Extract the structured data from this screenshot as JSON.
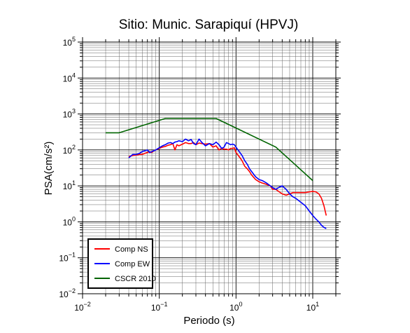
{
  "chart_data": {
    "type": "line",
    "title": "Sitio: Munic. Sarapiquí (HPVJ)",
    "xlabel": "Periodo (s)",
    "ylabel": "PSA(cm/s²)",
    "x_scale": "log",
    "y_scale": "log",
    "xlim": [
      0.01,
      20
    ],
    "ylim": [
      0.01,
      100000
    ],
    "grid": true,
    "legend_position": "bottom-left",
    "x_ticks": [
      {
        "base": "10",
        "exp": "−2",
        "value": 0.01
      },
      {
        "base": "10",
        "exp": "−1",
        "value": 0.1
      },
      {
        "base": "10",
        "exp": "0",
        "value": 1
      },
      {
        "base": "10",
        "exp": "1",
        "value": 10
      }
    ],
    "y_ticks": [
      {
        "base": "10",
        "exp": "−2",
        "value": 0.01
      },
      {
        "base": "10",
        "exp": "−1",
        "value": 0.1
      },
      {
        "base": "10",
        "exp": "0",
        "value": 1
      },
      {
        "base": "10",
        "exp": "1",
        "value": 10
      },
      {
        "base": "10",
        "exp": "2",
        "value": 100
      },
      {
        "base": "10",
        "exp": "3",
        "value": 1000
      },
      {
        "base": "10",
        "exp": "4",
        "value": 10000
      },
      {
        "base": "10",
        "exp": "5",
        "value": 100000
      }
    ],
    "series": [
      {
        "name": "Comp NS",
        "color": "#ff0000",
        "x": [
          0.04,
          0.045,
          0.05,
          0.055,
          0.06,
          0.065,
          0.07,
          0.075,
          0.08,
          0.085,
          0.09,
          0.1,
          0.11,
          0.12,
          0.13,
          0.14,
          0.15,
          0.16,
          0.17,
          0.18,
          0.2,
          0.22,
          0.24,
          0.26,
          0.28,
          0.3,
          0.33,
          0.36,
          0.4,
          0.45,
          0.5,
          0.55,
          0.6,
          0.65,
          0.7,
          0.75,
          0.8,
          0.85,
          0.9,
          0.95,
          1.0,
          1.1,
          1.2,
          1.3,
          1.4,
          1.5,
          1.6,
          1.8,
          2.0,
          2.2,
          2.5,
          2.8,
          3.0,
          3.3,
          3.6,
          4.0,
          4.5,
          5.0,
          5.5,
          6.0,
          7.0,
          8.0,
          9.0,
          10.0,
          11.0,
          12.0,
          13.0,
          14.0,
          15.0
        ],
        "y": [
          65,
          70,
          72,
          75,
          75,
          80,
          85,
          90,
          85,
          95,
          100,
          110,
          120,
          125,
          135,
          140,
          150,
          100,
          140,
          130,
          145,
          160,
          150,
          150,
          160,
          140,
          155,
          150,
          145,
          150,
          120,
          130,
          100,
          110,
          105,
          105,
          100,
          110,
          110,
          115,
          85,
          65,
          50,
          35,
          30,
          25,
          20,
          15,
          13,
          12,
          11,
          10,
          8,
          8,
          7,
          6,
          5.5,
          6,
          6.5,
          6.5,
          6.5,
          6.5,
          6.8,
          7.0,
          6.8,
          6.0,
          4.5,
          2.8,
          1.5
        ]
      },
      {
        "name": "Comp EW",
        "color": "#0000ff",
        "x": [
          0.04,
          0.045,
          0.05,
          0.055,
          0.06,
          0.065,
          0.07,
          0.075,
          0.08,
          0.085,
          0.09,
          0.1,
          0.11,
          0.12,
          0.13,
          0.14,
          0.15,
          0.16,
          0.17,
          0.18,
          0.2,
          0.22,
          0.24,
          0.26,
          0.28,
          0.3,
          0.33,
          0.36,
          0.4,
          0.45,
          0.5,
          0.55,
          0.6,
          0.65,
          0.7,
          0.75,
          0.8,
          0.85,
          0.9,
          0.95,
          1.0,
          1.1,
          1.2,
          1.3,
          1.4,
          1.5,
          1.6,
          1.8,
          2.0,
          2.2,
          2.5,
          2.8,
          3.0,
          3.3,
          3.6,
          4.0,
          4.5,
          5.0,
          5.5,
          6.0,
          7.0,
          8.0,
          9.0,
          10.0,
          11.0,
          12.0,
          13.0,
          14.0,
          15.0
        ],
        "y": [
          60,
          75,
          75,
          80,
          90,
          95,
          100,
          85,
          90,
          95,
          100,
          115,
          130,
          140,
          155,
          160,
          150,
          165,
          170,
          180,
          170,
          200,
          180,
          195,
          150,
          140,
          200,
          160,
          130,
          150,
          140,
          165,
          140,
          110,
          120,
          160,
          150,
          140,
          145,
          140,
          120,
          90,
          70,
          50,
          40,
          30,
          25,
          18,
          15,
          14,
          12,
          10,
          9,
          8,
          9,
          10,
          8,
          6,
          5,
          4.5,
          3.5,
          2.8,
          2.0,
          1.5,
          1.2,
          1.0,
          0.8,
          0.7,
          0.65
        ]
      },
      {
        "name": "CSCR 2010",
        "color": "#006400",
        "x": [
          0.02,
          0.03,
          0.12,
          0.55,
          3.3,
          10.0
        ],
        "y": [
          300,
          300,
          750,
          750,
          120,
          14
        ]
      }
    ]
  }
}
